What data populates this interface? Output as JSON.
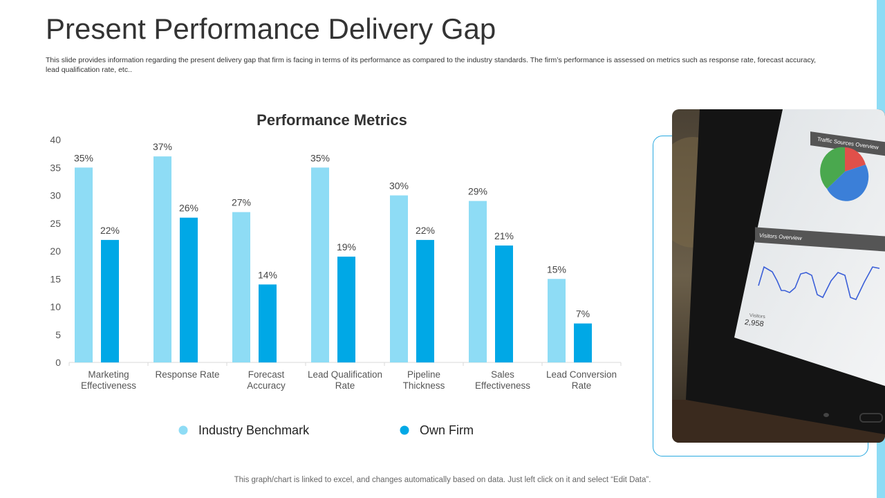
{
  "slide": {
    "title": "Present Performance Delivery Gap",
    "description": "This slide provides information regarding the present delivery gap that firm is facing in terms of its performance as compared to the industry standards. The firm’s performance is assessed on metrics such as response rate, forecast accuracy, lead qualification rate, etc..",
    "footer_note": "This graph/chart is linked to excel, and changes automatically based on data. Just left click on it and select “Edit Data”."
  },
  "photo": {
    "panel1_title": "Traffic Sources Overview",
    "panel2_title": "Visitors Overview",
    "visitors_label": "Visitors",
    "visitors_value": "2,958"
  },
  "colors": {
    "industry": "#8edcf5",
    "own": "#00a8e6",
    "accent": "#29a9e0"
  },
  "chart_data": {
    "type": "bar",
    "title": "Performance Metrics",
    "categories": [
      [
        "Marketing",
        "Effectiveness"
      ],
      [
        "Response Rate"
      ],
      [
        "Forecast",
        "Accuracy"
      ],
      [
        "Lead Qualification",
        "Rate"
      ],
      [
        "Pipeline",
        "Thickness"
      ],
      [
        "Sales",
        "Effectiveness"
      ],
      [
        "Lead Conversion",
        "Rate"
      ]
    ],
    "series": [
      {
        "name": "Industry Benchmark",
        "values": [
          35,
          37,
          27,
          35,
          30,
          29,
          15
        ]
      },
      {
        "name": "Own Firm",
        "values": [
          22,
          26,
          14,
          19,
          22,
          21,
          7
        ]
      }
    ],
    "data_label_suffix": "%",
    "ylim": [
      0,
      40
    ],
    "yticks": [
      0,
      5,
      10,
      15,
      20,
      25,
      30,
      35,
      40
    ],
    "grid": false,
    "legend_position": "bottom"
  }
}
